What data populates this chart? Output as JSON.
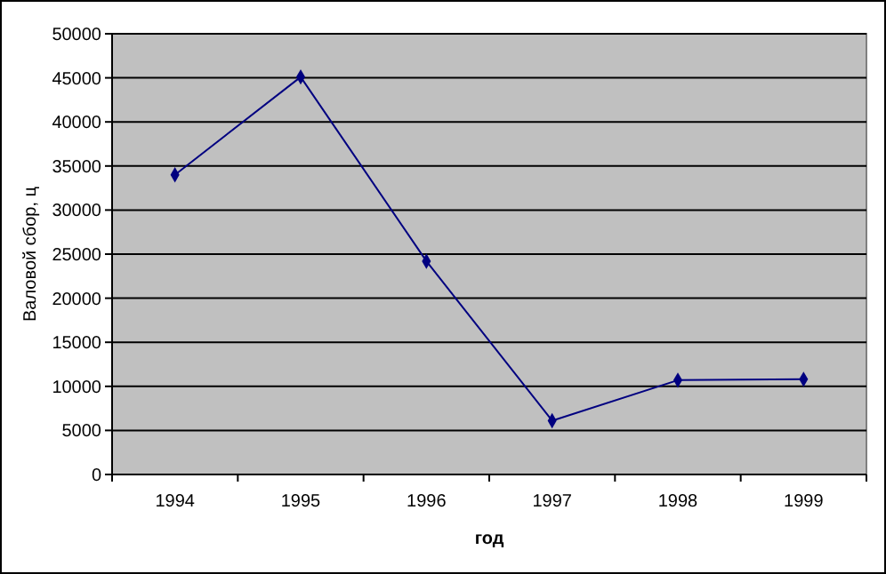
{
  "chart_data": {
    "type": "line",
    "xlabel": "год",
    "ylabel": "Валовой сбор, ц",
    "categories": [
      "1994",
      "1995",
      "1996",
      "1997",
      "1998",
      "1999"
    ],
    "series": [
      {
        "color": "#000080",
        "values": [
          34000,
          45100,
          24200,
          6100,
          10700,
          10800
        ]
      }
    ],
    "ylim": [
      0,
      50000
    ],
    "yticks": [
      0,
      5000,
      10000,
      15000,
      20000,
      25000,
      30000,
      35000,
      40000,
      45000,
      50000
    ],
    "grid": "y",
    "marker": "diamond",
    "line_style": "solid"
  }
}
